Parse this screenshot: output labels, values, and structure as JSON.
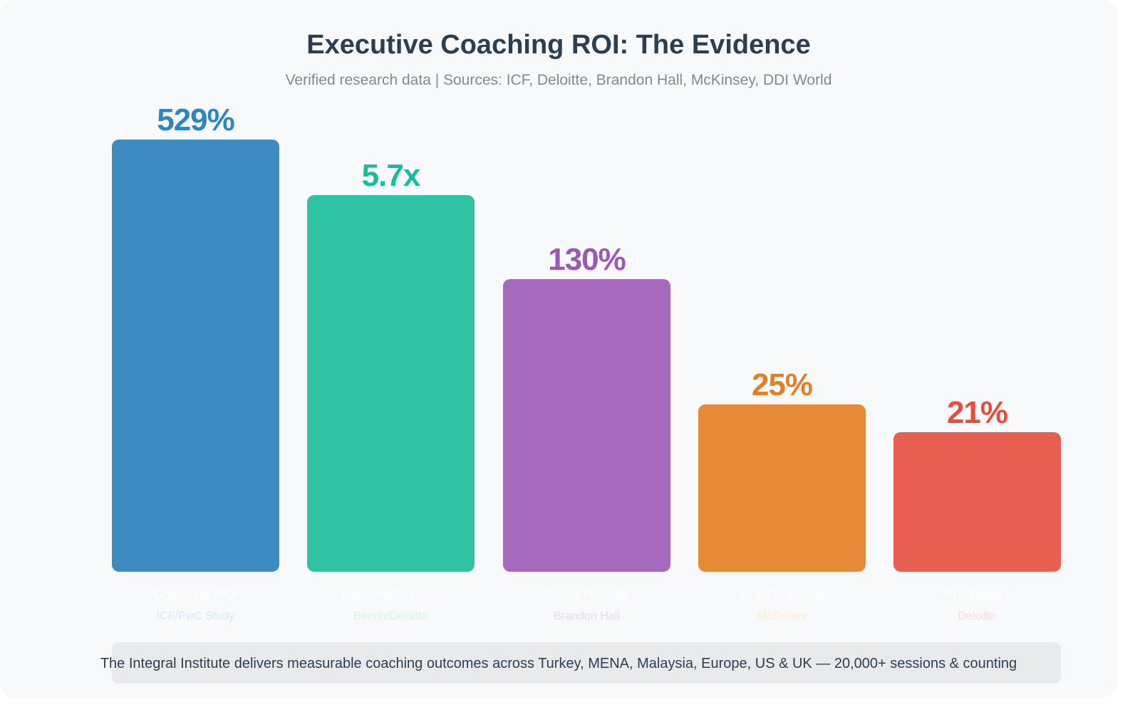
{
  "chart_data": {
    "type": "bar",
    "title": "Executive Coaching ROI: The Evidence",
    "subtitle": "Verified research data | Sources: ICF, Deloitte, Brandon Hall, McKinsey, DDI World",
    "categories": [
      "Coaching ROI",
      "High-Performing",
      "Better Results",
      "AI + Coaching",
      "Profitability"
    ],
    "value_labels": [
      "529%",
      "5.7x",
      "130%",
      "25%",
      "21%"
    ],
    "sources": [
      "ICF/PwC Study",
      "Bersin/Deloitte",
      "Brandon Hall",
      "McKinsey",
      "Deloitte"
    ],
    "bar_colors": [
      "#3d8bc2",
      "#2fc3a4",
      "#a569bd",
      "#e68a38",
      "#e85e50"
    ],
    "label_colors": [
      "#2e86c1",
      "#1abc9c",
      "#9b59b6",
      "#e67e22",
      "#e74c3c"
    ],
    "source_colors": [
      "#d6eaf8",
      "#d5f5e3",
      "#e8daef",
      "#fdebd0",
      "#fadbd8"
    ],
    "grid": false,
    "legend": "none"
  },
  "footer": "The Integral Institute delivers measurable coaching outcomes across Turkey, MENA, Malaysia, Europe, US & UK — 20,000+ sessions & counting"
}
